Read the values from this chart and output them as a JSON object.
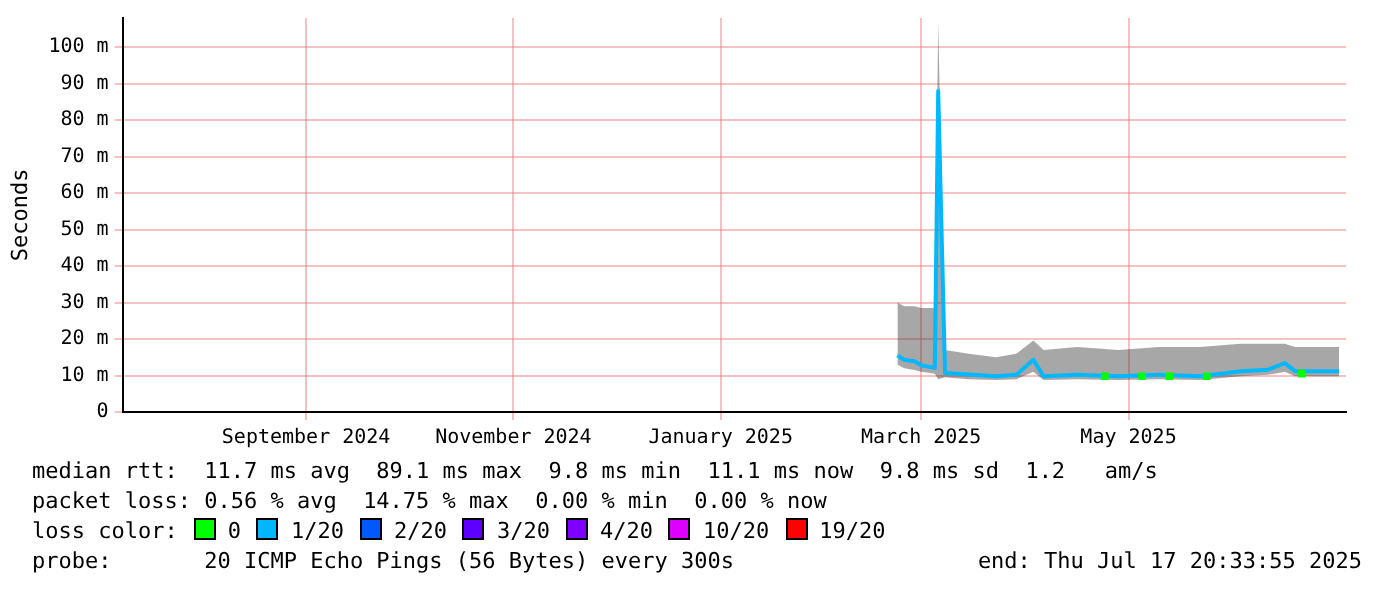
{
  "chart_data": {
    "type": "line",
    "ylabel": "Seconds",
    "legend_title": "loss color:",
    "legend": "bottom",
    "grid": true,
    "marker": "none",
    "xlim": [
      "2024-07-24",
      "2025-07-19"
    ],
    "xticks": [
      {
        "value": "2024-09-16",
        "label": "September 2024"
      },
      {
        "value": "2024-11-16",
        "label": "November 2024"
      },
      {
        "value": "2025-01-16",
        "label": "January 2025"
      },
      {
        "value": "2025-03-16",
        "label": "March 2025"
      },
      {
        "value": "2025-05-16",
        "label": "May 2025"
      }
    ],
    "ylim": [
      0,
      108
    ],
    "yticks": [
      0,
      {
        "value": 10,
        "label": "10 m"
      },
      {
        "value": 20,
        "label": "20 m"
      },
      {
        "value": 30,
        "label": "30 m"
      },
      {
        "value": 40,
        "label": "40 m"
      },
      {
        "value": 50,
        "label": "50 m"
      },
      {
        "value": 60,
        "label": "60 m"
      },
      {
        "value": 70,
        "label": "70 m"
      },
      {
        "value": 80,
        "label": "80 m"
      },
      {
        "value": 90,
        "label": "90 m"
      },
      {
        "value": 100,
        "label": "100 m"
      }
    ],
    "x": [
      "2025-03-09",
      "2025-03-11",
      "2025-03-14",
      "2025-03-16",
      "2025-03-20",
      "2025-03-21",
      "2025-03-23",
      "2025-03-30",
      "2025-04-07",
      "2025-04-13",
      "2025-04-18",
      "2025-04-21",
      "2025-05-01",
      "2025-05-13",
      "2025-05-25",
      "2025-06-06",
      "2025-06-18",
      "2025-06-26",
      "2025-07-01",
      "2025-07-04",
      "2025-07-17"
    ],
    "series": [
      {
        "name": "0",
        "color": "#00ff00",
        "type": "scatter",
        "marker": "square",
        "x": [
          "2025-05-09",
          "2025-05-20",
          "2025-05-28",
          "2025-06-08",
          "2025-07-06"
        ],
        "values": [
          9.8,
          9.8,
          9.8,
          9.8,
          10.5
        ]
      },
      {
        "name": "1/20",
        "color": "#00b8ff",
        "values": [
          15.5,
          14.3,
          13.9,
          12.8,
          12.1,
          88,
          10.7,
          10.3,
          9.8,
          10.2,
          14.3,
          9.8,
          10.2,
          9.8,
          10.2,
          9.8,
          11.2,
          11.6,
          13.4,
          11.2,
          11.2
        ],
        "lower": [
          13,
          12,
          11.5,
          11,
          10.5,
          9,
          9.5,
          9,
          8.8,
          9,
          11,
          8.8,
          9,
          8.8,
          9,
          8.8,
          9.8,
          10.2,
          11,
          9.8,
          9.8
        ],
        "upper": [
          30,
          29,
          29,
          28.5,
          28.5,
          107,
          17,
          16,
          15,
          16,
          19.6,
          17,
          17.8,
          17,
          17.8,
          17.8,
          18.7,
          18.7,
          18.7,
          17.8,
          17.8
        ]
      },
      {
        "name": "2/20",
        "color": "#0059ff",
        "type": "scatter",
        "values": [
          null,
          null,
          null,
          null,
          null,
          null,
          null,
          null,
          null,
          null,
          null,
          null,
          null,
          null,
          null,
          null,
          null,
          null,
          null,
          null,
          null
        ]
      },
      {
        "name": "3/20",
        "color": "#5e00ff",
        "type": "scatter",
        "values": [
          null,
          null,
          null,
          null,
          null,
          null,
          null,
          null,
          null,
          null,
          null,
          null,
          null,
          null,
          null,
          null,
          null,
          null,
          null,
          null,
          null
        ]
      },
      {
        "name": "4/20",
        "color": "#7e00ff",
        "type": "scatter",
        "values": [
          null,
          null,
          null,
          null,
          null,
          null,
          null,
          null,
          null,
          null,
          null,
          null,
          null,
          null,
          null,
          null,
          null,
          null,
          null,
          null,
          null
        ]
      },
      {
        "name": "10/20",
        "color": "#dd00ff",
        "type": "scatter",
        "values": [
          null,
          null,
          null,
          null,
          null,
          null,
          null,
          null,
          null,
          null,
          null,
          null,
          null,
          null,
          null,
          null,
          null,
          null,
          null,
          null,
          null
        ]
      },
      {
        "name": "19/20",
        "color": "#ff0000",
        "type": "scatter",
        "values": [
          null,
          null,
          null,
          null,
          null,
          null,
          null,
          null,
          null,
          null,
          null,
          null,
          null,
          null,
          null,
          null,
          null,
          null,
          null,
          null,
          null
        ]
      }
    ],
    "annotations": [
      "median rtt:  11.7 ms avg  89.1 ms max  9.8 ms min  11.1 ms now  9.8 ms sd  1.2   am/s",
      "packet loss: 0.56 % avg  14.75 % max  0.00 % min  0.00 % now",
      "probe:       20 ICMP Echo Pings (56 Bytes) every 300s",
      "end: Thu Jul 17 20:33:55 2025"
    ]
  }
}
